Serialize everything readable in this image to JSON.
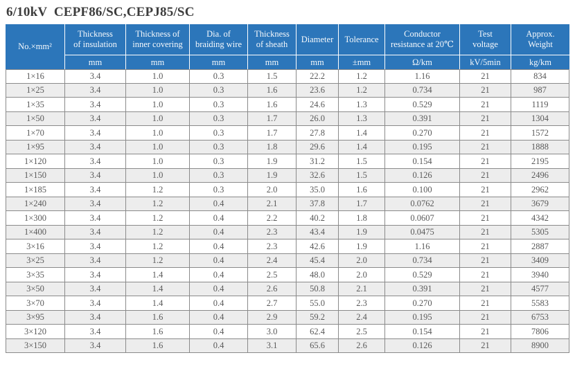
{
  "title": "6/10kV  CEPF86/SC,CEPJ85/SC",
  "colors": {
    "header_bg": "#2c76ba",
    "header_text": "#f6f9fc",
    "border_gray": "#8a8a8a",
    "row_alt": "#ededed",
    "cell_text": "#595959",
    "title_text": "#3d3d3d"
  },
  "table": {
    "header": [
      {
        "label": "No.×mm²",
        "unit": null
      },
      {
        "label": "Thickness\nof insulation",
        "unit": "mm"
      },
      {
        "label": "Thickness of\ninner covering",
        "unit": "mm"
      },
      {
        "label": "Dia. of\nbraiding wire",
        "unit": "mm"
      },
      {
        "label": "Thickness\nof sheath",
        "unit": "mm"
      },
      {
        "label": "Diameter",
        "unit": "mm"
      },
      {
        "label": "Tolerance",
        "unit": "±mm"
      },
      {
        "label": "Conductor\nresistance at 20℃",
        "unit": "Ω/km"
      },
      {
        "label": "Test\nvoltage",
        "unit": "kV/5min"
      },
      {
        "label": "Approx.\nWeight",
        "unit": "kg/km"
      }
    ],
    "rows": [
      [
        "1×16",
        "3.4",
        "1.0",
        "0.3",
        "1.5",
        "22.2",
        "1.2",
        "1.16",
        "21",
        "834"
      ],
      [
        "1×25",
        "3.4",
        "1.0",
        "0.3",
        "1.6",
        "23.6",
        "1.2",
        "0.734",
        "21",
        "987"
      ],
      [
        "1×35",
        "3.4",
        "1.0",
        "0.3",
        "1.6",
        "24.6",
        "1.3",
        "0.529",
        "21",
        "1119"
      ],
      [
        "1×50",
        "3.4",
        "1.0",
        "0.3",
        "1.7",
        "26.0",
        "1.3",
        "0.391",
        "21",
        "1304"
      ],
      [
        "1×70",
        "3.4",
        "1.0",
        "0.3",
        "1.7",
        "27.8",
        "1.4",
        "0.270",
        "21",
        "1572"
      ],
      [
        "1×95",
        "3.4",
        "1.0",
        "0.3",
        "1.8",
        "29.6",
        "1.4",
        "0.195",
        "21",
        "1888"
      ],
      [
        "1×120",
        "3.4",
        "1.0",
        "0.3",
        "1.9",
        "31.2",
        "1.5",
        "0.154",
        "21",
        "2195"
      ],
      [
        "1×150",
        "3.4",
        "1.0",
        "0.3",
        "1.9",
        "32.6",
        "1.5",
        "0.126",
        "21",
        "2496"
      ],
      [
        "1×185",
        "3.4",
        "1.2",
        "0.3",
        "2.0",
        "35.0",
        "1.6",
        "0.100",
        "21",
        "2962"
      ],
      [
        "1×240",
        "3.4",
        "1.2",
        "0.4",
        "2.1",
        "37.8",
        "1.7",
        "0.0762",
        "21",
        "3679"
      ],
      [
        "1×300",
        "3.4",
        "1.2",
        "0.4",
        "2.2",
        "40.2",
        "1.8",
        "0.0607",
        "21",
        "4342"
      ],
      [
        "1×400",
        "3.4",
        "1.2",
        "0.4",
        "2.3",
        "43.4",
        "1.9",
        "0.0475",
        "21",
        "5305"
      ],
      [
        "3×16",
        "3.4",
        "1.2",
        "0.4",
        "2.3",
        "42.6",
        "1.9",
        "1.16",
        "21",
        "2887"
      ],
      [
        "3×25",
        "3.4",
        "1.2",
        "0.4",
        "2.4",
        "45.4",
        "2.0",
        "0.734",
        "21",
        "3409"
      ],
      [
        "3×35",
        "3.4",
        "1.4",
        "0.4",
        "2.5",
        "48.0",
        "2.0",
        "0.529",
        "21",
        "3940"
      ],
      [
        "3×50",
        "3.4",
        "1.4",
        "0.4",
        "2.6",
        "50.8",
        "2.1",
        "0.391",
        "21",
        "4577"
      ],
      [
        "3×70",
        "3.4",
        "1.4",
        "0.4",
        "2.7",
        "55.0",
        "2.3",
        "0.270",
        "21",
        "5583"
      ],
      [
        "3×95",
        "3.4",
        "1.6",
        "0.4",
        "2.9",
        "59.2",
        "2.4",
        "0.195",
        "21",
        "6753"
      ],
      [
        "3×120",
        "3.4",
        "1.6",
        "0.4",
        "3.0",
        "62.4",
        "2.5",
        "0.154",
        "21",
        "7806"
      ],
      [
        "3×150",
        "3.4",
        "1.6",
        "0.4",
        "3.1",
        "65.6",
        "2.6",
        "0.126",
        "21",
        "8900"
      ]
    ]
  }
}
